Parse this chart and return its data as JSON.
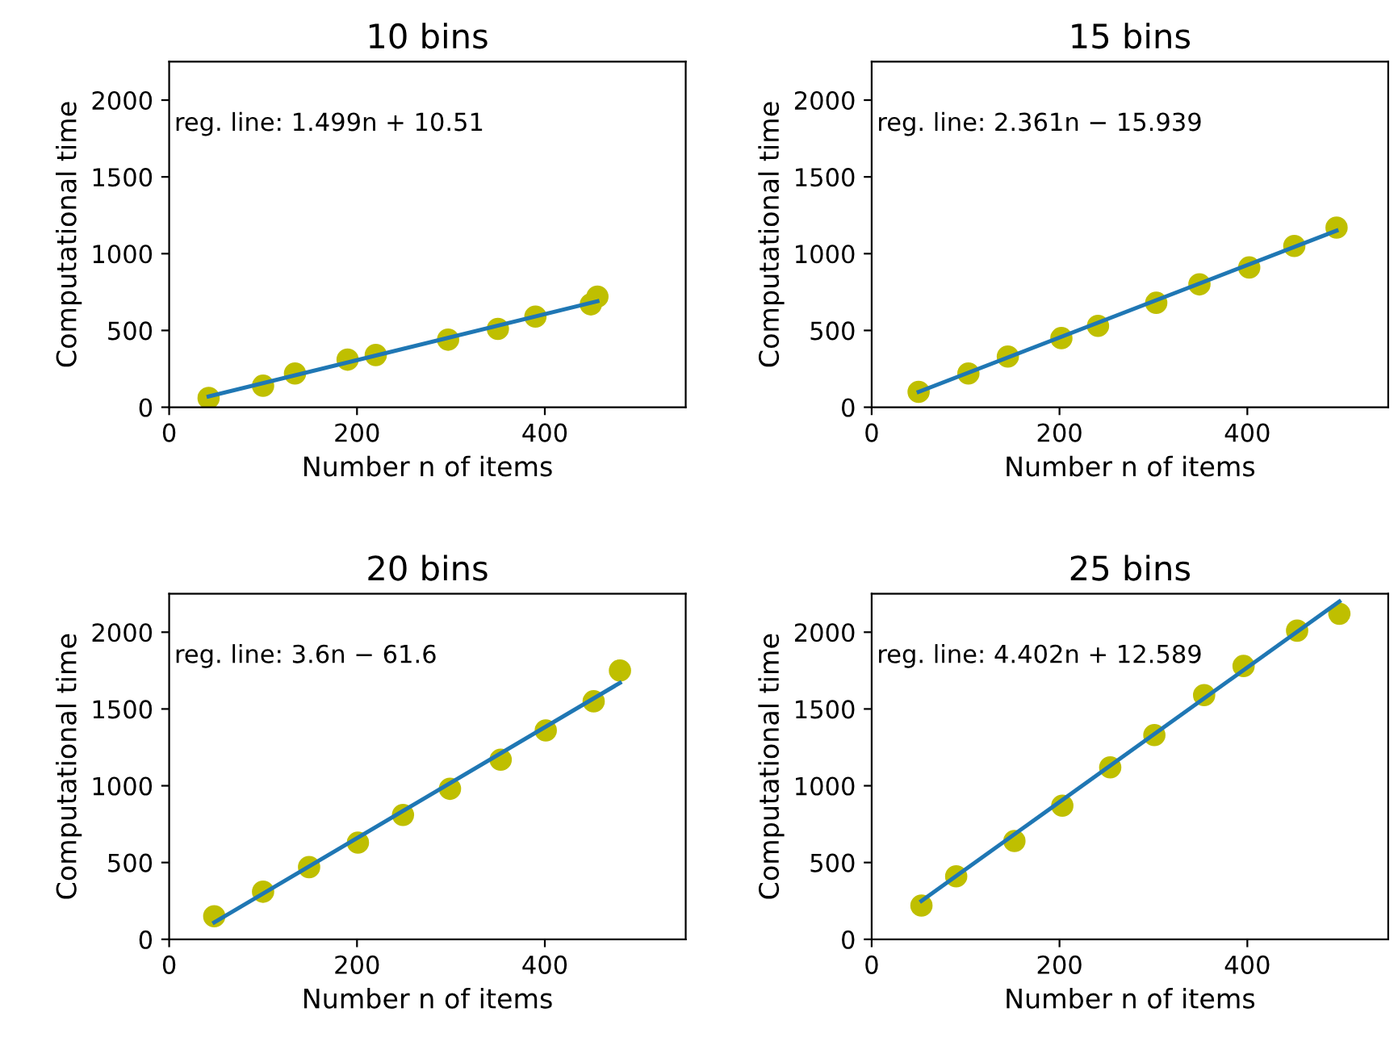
{
  "chart_data": [
    {
      "type": "scatter",
      "title": "10 bins",
      "xlabel": "Number n of items",
      "ylabel": "Computational time",
      "xlim": [
        0,
        550
      ],
      "ylim": [
        0,
        2250
      ],
      "xticks": [
        0,
        200,
        400
      ],
      "yticks": [
        0,
        500,
        1000,
        1500,
        2000
      ],
      "annotations": [
        "reg. line: 1.499n + 10.51"
      ],
      "series": [
        {
          "color": "#bfbf00",
          "x": [
            42,
            100,
            134,
            190,
            220,
            297,
            350,
            390,
            449,
            456
          ],
          "values": [
            60,
            140,
            220,
            310,
            340,
            440,
            510,
            590,
            670,
            720
          ]
        },
        {
          "type": "line",
          "color": "#1f77b4",
          "x": [
            42,
            456
          ],
          "values": [
            70,
            690
          ]
        }
      ]
    },
    {
      "type": "scatter",
      "title": "15 bins",
      "xlabel": "Number n of items",
      "ylabel": "Computational time",
      "xlim": [
        0,
        550
      ],
      "ylim": [
        0,
        2250
      ],
      "xticks": [
        0,
        200,
        400
      ],
      "yticks": [
        0,
        500,
        1000,
        1500,
        2000
      ],
      "annotations": [
        "reg. line: 2.361n − 15.939"
      ],
      "series": [
        {
          "color": "#bfbf00",
          "x": [
            50,
            103,
            145,
            202,
            241,
            303,
            349,
            402,
            450,
            495
          ],
          "values": [
            100,
            220,
            330,
            450,
            530,
            680,
            800,
            910,
            1050,
            1170
          ]
        },
        {
          "type": "line",
          "color": "#1f77b4",
          "x": [
            50,
            495
          ],
          "values": [
            100,
            1150
          ]
        }
      ]
    },
    {
      "type": "scatter",
      "title": "20 bins",
      "xlabel": "Number n of items",
      "ylabel": "Computational time",
      "xlim": [
        0,
        550
      ],
      "ylim": [
        0,
        2250
      ],
      "xticks": [
        0,
        200,
        400
      ],
      "yticks": [
        0,
        500,
        1000,
        1500,
        2000
      ],
      "annotations": [
        "reg. line: 3.6n − 61.6"
      ],
      "series": [
        {
          "color": "#bfbf00",
          "x": [
            48,
            100,
            149,
            201,
            249,
            299,
            353,
            401,
            452,
            480
          ],
          "values": [
            150,
            310,
            470,
            630,
            810,
            980,
            1170,
            1360,
            1550,
            1750
          ]
        },
        {
          "type": "line",
          "color": "#1f77b4",
          "x": [
            48,
            480
          ],
          "values": [
            110,
            1670
          ]
        }
      ]
    },
    {
      "type": "scatter",
      "title": "25 bins",
      "xlabel": "Number n of items",
      "ylabel": "Computational time",
      "xlim": [
        0,
        550
      ],
      "ylim": [
        0,
        2250
      ],
      "xticks": [
        0,
        200,
        400
      ],
      "yticks": [
        0,
        500,
        1000,
        1500,
        2000
      ],
      "annotations": [
        "reg. line: 4.402n + 12.589"
      ],
      "series": [
        {
          "color": "#bfbf00",
          "x": [
            53,
            90,
            152,
            203,
            254,
            301,
            354,
            396,
            453,
            498
          ],
          "values": [
            220,
            410,
            640,
            870,
            1120,
            1330,
            1590,
            1780,
            2010,
            2120
          ]
        },
        {
          "type": "line",
          "color": "#1f77b4",
          "x": [
            53,
            498
          ],
          "values": [
            250,
            2200
          ]
        }
      ]
    }
  ]
}
